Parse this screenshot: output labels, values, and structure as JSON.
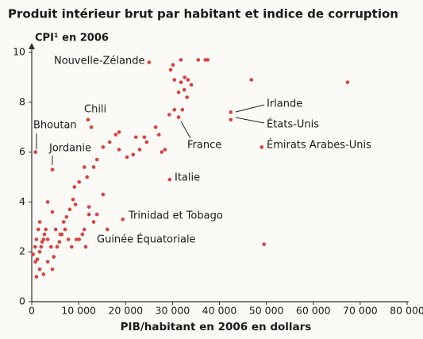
{
  "chart_data": {
    "type": "scatter",
    "title": "Produit intérieur brut par habitant et indice de corruption",
    "y_label": "CPI¹ en 2006",
    "x_label": "PIB/habitant en 2006 en dollars",
    "color": "#d8413f",
    "xlim": [
      0,
      80000
    ],
    "xticks": [
      0,
      {
        "value": 10000,
        "label": "10 000"
      },
      {
        "value": 20000,
        "label": "20 000"
      },
      {
        "value": 30000,
        "label": "30 000"
      },
      {
        "value": 40000,
        "label": "40 000"
      },
      {
        "value": 50000,
        "label": "50 000"
      },
      {
        "value": 60000,
        "label": "60 000"
      },
      {
        "value": 70000,
        "label": "70 000"
      },
      {
        "value": 80000,
        "label": "80 000"
      }
    ],
    "ylim": [
      0,
      10
    ],
    "yticks": [
      0,
      2,
      4,
      6,
      8,
      10
    ],
    "annotations": [
      "Nouvelle-Zélande",
      "Chili",
      "Bhoutan",
      "Jordanie",
      "Irlande",
      "États-Unis",
      "France",
      "Émirats Arabes-Unis",
      "Italie",
      "Trinidad et Tobago",
      "Guinée Équatoriale"
    ],
    "x": [
      25000,
      31800,
      29600,
      30400,
      31800,
      32600,
      33300,
      34000,
      35500,
      37000,
      37500,
      31300,
      32500,
      33100,
      30100,
      67300,
      46800,
      42400,
      42400,
      49000,
      49500,
      31300,
      29400,
      12000,
      800,
      4400,
      19400,
      29300,
      30400,
      32100,
      24500,
      22200,
      23000,
      21600,
      20300,
      18600,
      17900,
      18600,
      16600,
      15200,
      13900,
      13200,
      11800,
      11200,
      10100,
      9100,
      27700,
      28400,
      27100,
      26400,
      24000,
      12700,
      15200,
      13900,
      13200,
      12200,
      11200,
      10100,
      9300,
      8800,
      8100,
      7400,
      6800,
      6400,
      5900,
      5100,
      4400,
      3400,
      3000,
      2500,
      2000,
      1700,
      1400,
      1000,
      700,
      300,
      800,
      1200,
      1700,
      2200,
      2700,
      3400,
      4100,
      4700,
      5400,
      6100,
      7100,
      7800,
      8500,
      9500,
      10800,
      11500,
      3400,
      1700,
      1000,
      2500,
      4400,
      12200,
      16100
    ],
    "y": [
      9.6,
      9.7,
      9.3,
      8.9,
      8.8,
      9.0,
      8.9,
      8.7,
      9.7,
      9.7,
      9.7,
      8.4,
      8.5,
      8.2,
      9.5,
      8.8,
      8.9,
      7.6,
      7.3,
      6.2,
      2.3,
      7.4,
      4.9,
      7.3,
      6.0,
      5.3,
      3.3,
      7.5,
      7.7,
      7.7,
      6.4,
      6.6,
      6.1,
      5.9,
      5.8,
      6.1,
      6.7,
      6.8,
      6.4,
      6.2,
      5.7,
      5.4,
      5.0,
      5.4,
      4.8,
      4.6,
      6.0,
      6.1,
      6.7,
      7.0,
      6.6,
      7.0,
      4.3,
      3.5,
      3.2,
      3.8,
      2.9,
      2.5,
      3.9,
      4.1,
      3.7,
      3.4,
      3.2,
      2.7,
      2.4,
      2.9,
      3.6,
      4.0,
      2.9,
      2.5,
      2.2,
      3.2,
      2.9,
      2.5,
      2.2,
      1.9,
      1.6,
      1.7,
      2.0,
      2.4,
      2.7,
      2.5,
      2.2,
      1.8,
      2.2,
      2.7,
      2.9,
      2.5,
      2.2,
      2.5,
      2.7,
      2.2,
      1.6,
      1.3,
      1.0,
      1.1,
      1.3,
      3.5,
      2.9
    ]
  }
}
